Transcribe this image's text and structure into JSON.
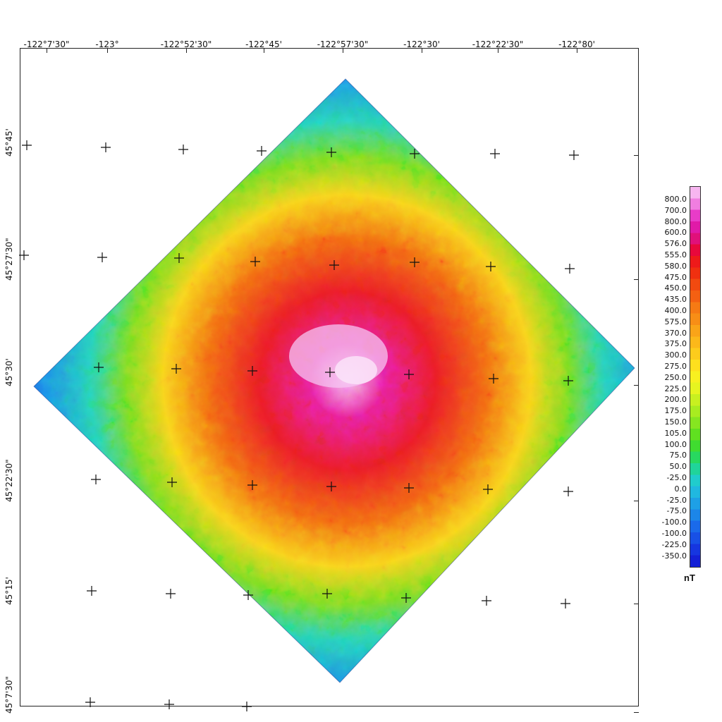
{
  "map": {
    "longitude_labels": [
      "-122°7'30\"",
      "-123°",
      "-122°52'30\"",
      "-122°45'",
      "-122°57'30\"",
      "-122°30'",
      "-122°22'30\"",
      "-122°80'"
    ],
    "latitude_labels": [
      "45°45'",
      "45°27'30\"",
      "45°30'",
      "45°22'30\"",
      "45°15'",
      "45°7'30\""
    ]
  },
  "legend": {
    "unit": "nT",
    "values": [
      "800.0",
      "700.0",
      "800.0",
      "600.0",
      "576.0",
      "555.0",
      "580.0",
      "475.0",
      "450.0",
      "435.0",
      "400.0",
      "575.0",
      "370.0",
      "375.0",
      "300.0",
      "275.0",
      "250.0",
      "225.0",
      "200.0",
      "175.0",
      "150.0",
      "105.0",
      "100.0",
      "75.0",
      "50.0",
      "-25.0",
      "0.0",
      "-25.0",
      "-75.0",
      "-100.0",
      "-100.0",
      "-225.0",
      "-350.0"
    ],
    "colors": [
      "#f7b6f0",
      "#f07ee0",
      "#e83cc8",
      "#e01aa8",
      "#e0107a",
      "#e8083c",
      "#ee1a1a",
      "#f03010",
      "#f24a10",
      "#f46012",
      "#f67a14",
      "#f88e16",
      "#faa418",
      "#fcb81a",
      "#fdcc1c",
      "#fee01e",
      "#f8f020",
      "#e6f420",
      "#c8f020",
      "#a8ec20",
      "#86e620",
      "#60e020",
      "#40dc30",
      "#28d860",
      "#20d49a",
      "#20cccc",
      "#20b8e0",
      "#1ea0e6",
      "#1c86e8",
      "#1a6aea",
      "#1850e6",
      "#1636e0",
      "#1420d6"
    ]
  }
}
